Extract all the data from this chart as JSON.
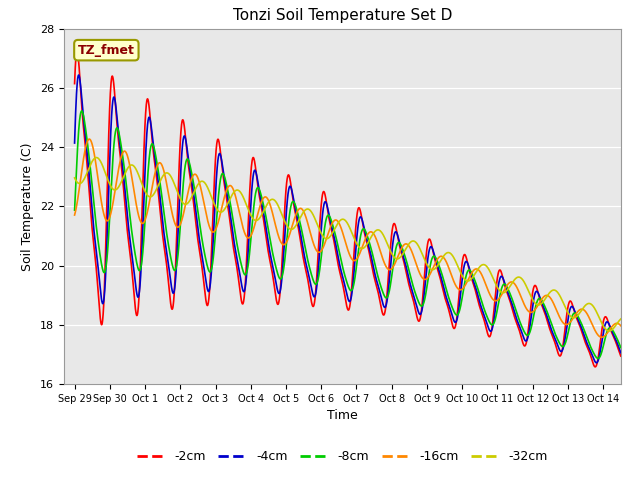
{
  "title": "Tonzi Soil Temperature Set D",
  "xlabel": "Time",
  "ylabel": "Soil Temperature (C)",
  "ylim": [
    16,
    28
  ],
  "xlim_days": [
    -0.3,
    15.5
  ],
  "tick_labels": [
    "Sep 29",
    "Sep 30",
    "Oct 1",
    "Oct 2",
    "Oct 3",
    "Oct 4",
    "Oct 5",
    "Oct 6",
    "Oct 7",
    "Oct 8",
    "Oct 9",
    "Oct 10",
    "Oct 11",
    "Oct 12",
    "Oct 13",
    "Oct 14"
  ],
  "tick_positions": [
    0,
    1,
    2,
    3,
    4,
    5,
    6,
    7,
    8,
    9,
    10,
    11,
    12,
    13,
    14,
    15
  ],
  "colors": {
    "-2cm": "#ff0000",
    "-4cm": "#0000cc",
    "-8cm": "#00cc00",
    "-16cm": "#ff8800",
    "-32cm": "#cccc00"
  },
  "annotation_text": "TZ_fmet",
  "background_color": "#e8e8e8",
  "figure_bg": "#ffffff"
}
